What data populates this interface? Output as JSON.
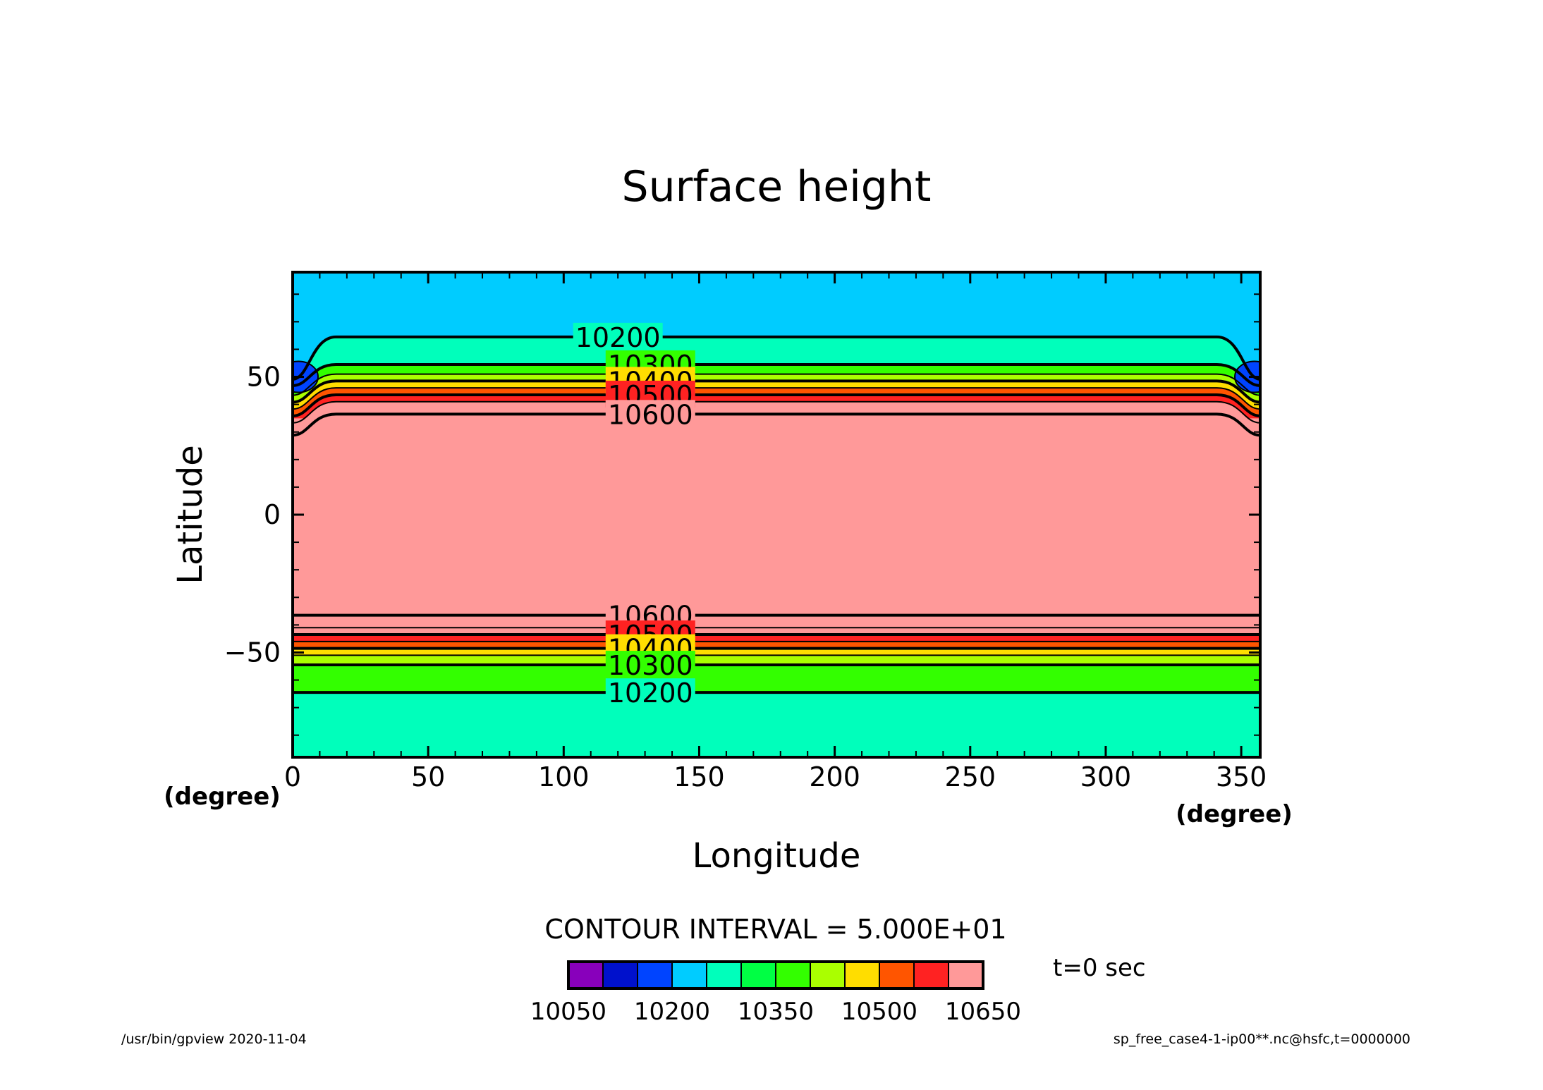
{
  "chart_data": {
    "type": "contour",
    "title": "Surface height",
    "xlabel": "Longitude",
    "ylabel": "Latitude",
    "x_unit": "(degree)",
    "y_unit": "(degree)",
    "xlim": [
      0,
      357
    ],
    "ylim": [
      -88,
      88
    ],
    "x_ticks": [
      0,
      50,
      100,
      150,
      200,
      250,
      300,
      350
    ],
    "y_ticks": [
      -50,
      0,
      50
    ],
    "contour_interval_text": "CONTOUR INTERVAL = 5.000E+01",
    "time_text": "t=0 sec",
    "colorbar": {
      "colors": [
        "#8800bb",
        "#0011cc",
        "#0044ff",
        "#00ccff",
        "#00ffbb",
        "#00ff44",
        "#33ff00",
        "#aaff00",
        "#ffdd00",
        "#ff5500",
        "#ff2222",
        "#ff9999"
      ],
      "labels": [
        "10050",
        "10200",
        "10350",
        "10500",
        "10650"
      ]
    },
    "bands_north": [
      {
        "lat": 64.5,
        "level": 10200,
        "label": "10200",
        "bold": true
      },
      {
        "lat": 54.5,
        "level": 10300,
        "label": "10300",
        "bold": true
      },
      {
        "lat": 51,
        "level": 10350,
        "label": "",
        "bold": false
      },
      {
        "lat": 48.5,
        "level": 10400,
        "label": "10400",
        "bold": true
      },
      {
        "lat": 46,
        "level": 10450,
        "label": "",
        "bold": false
      },
      {
        "lat": 43.5,
        "level": 10500,
        "label": "10500",
        "bold": true
      },
      {
        "lat": 41,
        "level": 10550,
        "label": "",
        "bold": false
      },
      {
        "lat": 36.5,
        "level": 10600,
        "label": "10600",
        "bold": true
      }
    ],
    "bands_south": [
      {
        "lat": -36.5,
        "level": 10600,
        "label": "10600",
        "bold": true
      },
      {
        "lat": -41,
        "level": 10550,
        "label": "",
        "bold": false
      },
      {
        "lat": -43.5,
        "level": 10500,
        "label": "10500",
        "bold": true
      },
      {
        "lat": -46,
        "level": 10450,
        "label": "",
        "bold": false
      },
      {
        "lat": -48.5,
        "level": 10400,
        "label": "10400",
        "bold": true
      },
      {
        "lat": -51,
        "level": 10350,
        "label": "",
        "bold": false
      },
      {
        "lat": -54.5,
        "level": 10300,
        "label": "10300",
        "bold": true
      },
      {
        "lat": -64.5,
        "level": 10200,
        "label": "10200",
        "bold": true
      }
    ]
  },
  "footer": {
    "left": "/usr/bin/gpview   2020-11-04",
    "right": "sp_free_case4-1-ip00**.nc@hsfc,t=0000000"
  }
}
